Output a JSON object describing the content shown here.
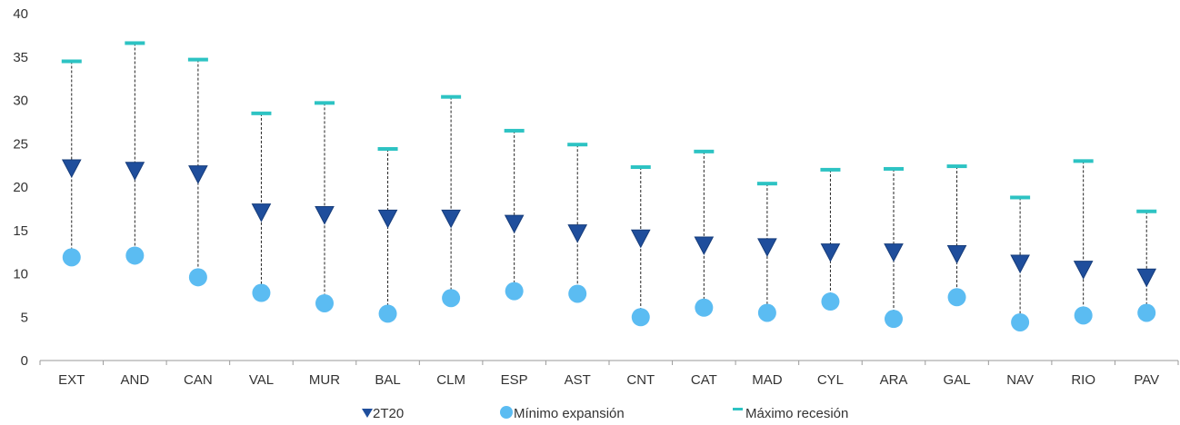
{
  "chart_data": {
    "type": "scatter",
    "title": "",
    "xlabel": "",
    "ylabel": "",
    "ylim": [
      0,
      40
    ],
    "yticks": [
      0,
      5,
      10,
      15,
      20,
      25,
      30,
      35,
      40
    ],
    "grid": false,
    "legend_position": "bottom",
    "categories": [
      "EXT",
      "AND",
      "CAN",
      "VAL",
      "MUR",
      "BAL",
      "CLM",
      "ESP",
      "AST",
      "CNT",
      "CAT",
      "MAD",
      "CYL",
      "ARA",
      "GAL",
      "NAV",
      "RIO",
      "PAV"
    ],
    "series": [
      {
        "name": "2T20",
        "marker": "triangle-down",
        "color": "#1f4e9c",
        "values": [
          22.1,
          21.8,
          21.4,
          17.0,
          16.7,
          16.3,
          16.3,
          15.7,
          14.6,
          14.0,
          13.2,
          13.0,
          12.4,
          12.4,
          12.2,
          11.1,
          10.4,
          9.5
        ]
      },
      {
        "name": "Mínimo expansión",
        "marker": "circle",
        "color": "#5bbcf2",
        "values": [
          11.9,
          12.1,
          9.6,
          7.8,
          6.6,
          5.4,
          7.2,
          8.0,
          7.7,
          5.0,
          6.1,
          5.5,
          6.8,
          4.8,
          7.3,
          4.4,
          5.2,
          5.5
        ]
      },
      {
        "name": "Máximo recesión",
        "marker": "dash",
        "color": "#2dc3c3",
        "values": [
          34.5,
          36.6,
          34.7,
          28.5,
          29.7,
          24.4,
          30.4,
          26.5,
          24.9,
          22.3,
          24.1,
          20.4,
          22.0,
          22.1,
          22.4,
          18.8,
          23.0,
          17.2
        ]
      }
    ],
    "range_connector": {
      "style": "dashed",
      "color": "#222222"
    }
  }
}
